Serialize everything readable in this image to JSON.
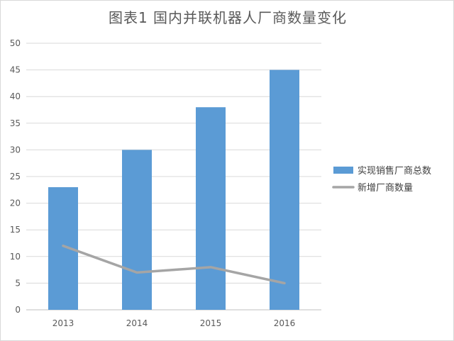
{
  "chart_data": {
    "type": "bar",
    "title": "图表1   国内并联机器人厂商数量变化",
    "categories": [
      "2013",
      "2014",
      "2015",
      "2016"
    ],
    "series": [
      {
        "name": "实现销售厂商总数",
        "type": "bar",
        "color": "#5b9bd5",
        "values": [
          23,
          30,
          38,
          45
        ]
      },
      {
        "name": "新增厂商数量",
        "type": "line",
        "color": "#a5a5a5",
        "values": [
          12,
          7,
          8,
          5
        ]
      }
    ],
    "ylim": [
      0,
      50
    ],
    "yticks": [
      0,
      5,
      10,
      15,
      20,
      25,
      30,
      35,
      40,
      45,
      50
    ],
    "grid": true,
    "legend_position": "right"
  }
}
